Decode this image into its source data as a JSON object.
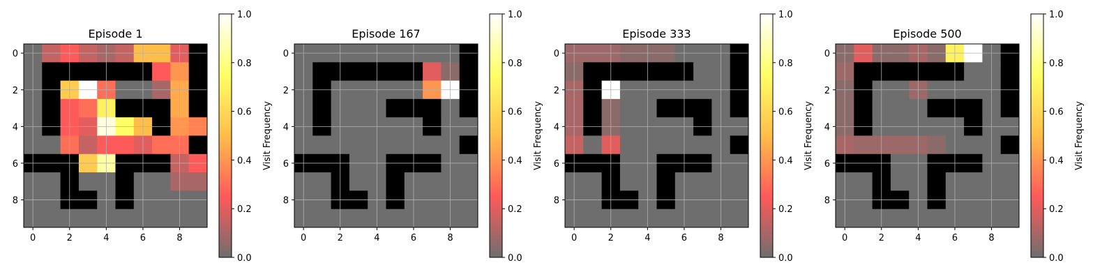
{
  "colors": {
    "wall": "#000000",
    "grid_line": "#b0b0b0",
    "cmap": [
      "#6e6e6e",
      "#ff5a5a",
      "#ffbe4a",
      "#ffff66",
      "#ffffff"
    ]
  },
  "chart_data": [
    {
      "type": "heatmap",
      "title": "Episode 1",
      "x_ticks": [
        "0",
        "2",
        "4",
        "6",
        "8"
      ],
      "y_ticks": [
        "0",
        "2",
        "4",
        "6",
        "8"
      ],
      "colorbar": {
        "label": "Visit Frequency",
        "range": [
          0,
          1
        ],
        "ticks": [
          "0.0",
          "0.2",
          "0.4",
          "0.6",
          "0.8",
          "1.0"
        ]
      },
      "grid": true,
      "walls": [
        [
          0,
          0,
          0,
          0,
          0,
          0,
          0,
          0,
          0,
          1
        ],
        [
          0,
          1,
          1,
          1,
          1,
          1,
          1,
          0,
          0,
          1
        ],
        [
          0,
          1,
          0,
          0,
          0,
          0,
          0,
          0,
          0,
          1
        ],
        [
          0,
          1,
          0,
          0,
          0,
          1,
          1,
          1,
          0,
          1
        ],
        [
          0,
          1,
          0,
          0,
          0,
          0,
          0,
          1,
          0,
          0
        ],
        [
          0,
          0,
          0,
          0,
          0,
          0,
          0,
          0,
          0,
          1
        ],
        [
          1,
          1,
          1,
          0,
          0,
          1,
          1,
          1,
          0,
          0
        ],
        [
          0,
          0,
          1,
          0,
          0,
          1,
          0,
          0,
          0,
          0
        ],
        [
          0,
          0,
          1,
          1,
          0,
          1,
          0,
          0,
          0,
          0
        ],
        [
          0,
          0,
          0,
          0,
          0,
          0,
          0,
          0,
          0,
          0
        ]
      ],
      "values": [
        [
          0.0,
          0.15,
          0.25,
          0.15,
          0.1,
          0.15,
          0.5,
          0.5,
          0.2,
          0.0
        ],
        [
          0.0,
          0.0,
          0.0,
          0.0,
          0.0,
          0.0,
          0.0,
          0.25,
          0.4,
          0.0
        ],
        [
          0.0,
          0.0,
          0.55,
          1.0,
          0.3,
          0.0,
          0.0,
          0.1,
          0.45,
          0.0
        ],
        [
          0.0,
          0.0,
          0.25,
          0.3,
          0.7,
          0.0,
          0.0,
          0.0,
          0.45,
          0.0
        ],
        [
          0.0,
          0.0,
          0.25,
          0.2,
          0.95,
          0.75,
          0.5,
          0.0,
          0.4,
          0.35
        ],
        [
          0.0,
          0.0,
          0.3,
          0.15,
          0.25,
          0.25,
          0.2,
          0.3,
          0.3,
          0.0
        ],
        [
          0.0,
          0.0,
          0.0,
          0.55,
          0.85,
          0.0,
          0.0,
          0.0,
          0.15,
          0.25
        ],
        [
          0.0,
          0.0,
          0.0,
          0.0,
          0.0,
          0.0,
          0.0,
          0.0,
          0.1,
          0.1
        ],
        [
          0.0,
          0.0,
          0.0,
          0.0,
          0.0,
          0.0,
          0.0,
          0.0,
          0.0,
          0.0
        ],
        [
          0.0,
          0.0,
          0.0,
          0.0,
          0.0,
          0.0,
          0.0,
          0.0,
          0.0,
          0.0
        ]
      ]
    },
    {
      "type": "heatmap",
      "title": "Episode 167",
      "x_ticks": [
        "0",
        "2",
        "4",
        "6",
        "8"
      ],
      "y_ticks": [
        "0",
        "2",
        "4",
        "6",
        "8"
      ],
      "colorbar": {
        "label": "Visit Frequency",
        "range": [
          0,
          1
        ],
        "ticks": [
          "0.0",
          "0.2",
          "0.4",
          "0.6",
          "0.8",
          "1.0"
        ]
      },
      "grid": true,
      "walls": [
        [
          0,
          0,
          0,
          0,
          0,
          0,
          0,
          0,
          0,
          1
        ],
        [
          0,
          1,
          1,
          1,
          1,
          1,
          1,
          0,
          0,
          1
        ],
        [
          0,
          1,
          0,
          0,
          0,
          0,
          0,
          0,
          0,
          1
        ],
        [
          0,
          1,
          0,
          0,
          0,
          1,
          1,
          1,
          0,
          1
        ],
        [
          0,
          1,
          0,
          0,
          0,
          0,
          0,
          1,
          0,
          0
        ],
        [
          0,
          0,
          0,
          0,
          0,
          0,
          0,
          0,
          0,
          1
        ],
        [
          1,
          1,
          1,
          0,
          0,
          1,
          1,
          1,
          0,
          0
        ],
        [
          0,
          0,
          1,
          0,
          0,
          1,
          0,
          0,
          0,
          0
        ],
        [
          0,
          0,
          1,
          1,
          0,
          1,
          0,
          0,
          0,
          0
        ],
        [
          0,
          0,
          0,
          0,
          0,
          0,
          0,
          0,
          0,
          0
        ]
      ],
      "values": [
        [
          0.0,
          0.0,
          0.0,
          0.0,
          0.0,
          0.0,
          0.0,
          0.0,
          0.0,
          0.0
        ],
        [
          0.0,
          0.0,
          0.0,
          0.0,
          0.0,
          0.0,
          0.0,
          0.2,
          0.05,
          0.0
        ],
        [
          0.0,
          0.0,
          0.0,
          0.0,
          0.0,
          0.0,
          0.0,
          0.4,
          1.0,
          0.0
        ],
        [
          0.0,
          0.0,
          0.0,
          0.0,
          0.0,
          0.0,
          0.0,
          0.0,
          0.0,
          0.0
        ],
        [
          0.0,
          0.0,
          0.0,
          0.0,
          0.0,
          0.0,
          0.0,
          0.0,
          0.0,
          0.0
        ],
        [
          0.0,
          0.0,
          0.0,
          0.0,
          0.0,
          0.0,
          0.0,
          0.0,
          0.0,
          0.0
        ],
        [
          0.0,
          0.0,
          0.0,
          0.0,
          0.0,
          0.0,
          0.0,
          0.0,
          0.0,
          0.0
        ],
        [
          0.0,
          0.0,
          0.0,
          0.0,
          0.0,
          0.0,
          0.0,
          0.0,
          0.0,
          0.0
        ],
        [
          0.0,
          0.0,
          0.0,
          0.0,
          0.0,
          0.0,
          0.0,
          0.0,
          0.0,
          0.0
        ],
        [
          0.0,
          0.0,
          0.0,
          0.0,
          0.0,
          0.0,
          0.0,
          0.0,
          0.0,
          0.0
        ]
      ]
    },
    {
      "type": "heatmap",
      "title": "Episode 333",
      "x_ticks": [
        "0",
        "2",
        "4",
        "6",
        "8"
      ],
      "y_ticks": [
        "0",
        "2",
        "4",
        "6",
        "8"
      ],
      "colorbar": {
        "label": "Visit Frequency",
        "range": [
          0,
          1
        ],
        "ticks": [
          "0.0",
          "0.2",
          "0.4",
          "0.6",
          "0.8",
          "1.0"
        ]
      },
      "grid": true,
      "walls": [
        [
          0,
          0,
          0,
          0,
          0,
          0,
          0,
          0,
          0,
          1
        ],
        [
          0,
          1,
          1,
          1,
          1,
          1,
          1,
          0,
          0,
          1
        ],
        [
          0,
          1,
          0,
          0,
          0,
          0,
          0,
          0,
          0,
          1
        ],
        [
          0,
          1,
          0,
          0,
          0,
          1,
          1,
          1,
          0,
          1
        ],
        [
          0,
          1,
          0,
          0,
          0,
          0,
          0,
          1,
          0,
          0
        ],
        [
          0,
          0,
          0,
          0,
          0,
          0,
          0,
          0,
          0,
          1
        ],
        [
          1,
          1,
          1,
          0,
          0,
          1,
          1,
          1,
          0,
          0
        ],
        [
          0,
          0,
          1,
          0,
          0,
          1,
          0,
          0,
          0,
          0
        ],
        [
          0,
          0,
          1,
          1,
          0,
          1,
          0,
          0,
          0,
          0
        ],
        [
          0,
          0,
          0,
          0,
          0,
          0,
          0,
          0,
          0,
          0
        ]
      ],
      "values": [
        [
          0.08,
          0.08,
          0.08,
          0.05,
          0.05,
          0.05,
          0.0,
          0.0,
          0.0,
          0.0
        ],
        [
          0.05,
          0.0,
          0.0,
          0.0,
          0.0,
          0.0,
          0.0,
          0.0,
          0.0,
          0.0
        ],
        [
          0.1,
          0.0,
          1.0,
          0.0,
          0.0,
          0.0,
          0.0,
          0.0,
          0.0,
          0.0
        ],
        [
          0.1,
          0.0,
          0.05,
          0.0,
          0.0,
          0.0,
          0.0,
          0.0,
          0.0,
          0.0
        ],
        [
          0.1,
          0.0,
          0.05,
          0.0,
          0.0,
          0.0,
          0.0,
          0.0,
          0.0,
          0.0
        ],
        [
          0.15,
          0.0,
          0.2,
          0.0,
          0.0,
          0.0,
          0.0,
          0.0,
          0.0,
          0.0
        ],
        [
          0.0,
          0.0,
          0.0,
          0.0,
          0.0,
          0.0,
          0.0,
          0.0,
          0.0,
          0.0
        ],
        [
          0.0,
          0.0,
          0.0,
          0.0,
          0.0,
          0.0,
          0.0,
          0.0,
          0.0,
          0.0
        ],
        [
          0.0,
          0.0,
          0.0,
          0.0,
          0.0,
          0.0,
          0.0,
          0.0,
          0.0,
          0.0
        ],
        [
          0.0,
          0.0,
          0.0,
          0.0,
          0.0,
          0.0,
          0.0,
          0.0,
          0.0,
          0.0
        ]
      ]
    },
    {
      "type": "heatmap",
      "title": "Episode 500",
      "x_ticks": [
        "0",
        "2",
        "4",
        "6",
        "8"
      ],
      "y_ticks": [
        "0",
        "2",
        "4",
        "6",
        "8"
      ],
      "colorbar": {
        "label": "Visit Frequency",
        "range": [
          0,
          1
        ],
        "ticks": [
          "0.0",
          "0.2",
          "0.4",
          "0.6",
          "0.8",
          "1.0"
        ]
      },
      "grid": true,
      "walls": [
        [
          0,
          0,
          0,
          0,
          0,
          0,
          0,
          0,
          0,
          1
        ],
        [
          0,
          1,
          1,
          1,
          1,
          1,
          1,
          0,
          0,
          1
        ],
        [
          0,
          1,
          0,
          0,
          0,
          0,
          0,
          0,
          0,
          1
        ],
        [
          0,
          1,
          0,
          0,
          0,
          1,
          1,
          1,
          0,
          1
        ],
        [
          0,
          1,
          0,
          0,
          0,
          0,
          0,
          1,
          0,
          0
        ],
        [
          0,
          0,
          0,
          0,
          0,
          0,
          0,
          0,
          0,
          1
        ],
        [
          1,
          1,
          1,
          0,
          0,
          1,
          1,
          1,
          0,
          0
        ],
        [
          0,
          0,
          1,
          0,
          0,
          1,
          0,
          0,
          0,
          0
        ],
        [
          0,
          0,
          1,
          1,
          0,
          1,
          0,
          0,
          0,
          0
        ],
        [
          0,
          0,
          0,
          0,
          0,
          0,
          0,
          0,
          0,
          0
        ]
      ],
      "values": [
        [
          0.05,
          0.2,
          0.05,
          0.05,
          0.1,
          0.05,
          0.7,
          1.0,
          0.0,
          0.0
        ],
        [
          0.08,
          0.0,
          0.0,
          0.0,
          0.0,
          0.0,
          0.0,
          0.0,
          0.0,
          0.0
        ],
        [
          0.05,
          0.0,
          0.0,
          0.0,
          0.08,
          0.0,
          0.0,
          0.0,
          0.0,
          0.0
        ],
        [
          0.05,
          0.0,
          0.0,
          0.0,
          0.0,
          0.0,
          0.0,
          0.0,
          0.0,
          0.0
        ],
        [
          0.05,
          0.0,
          0.0,
          0.0,
          0.0,
          0.0,
          0.0,
          0.0,
          0.0,
          0.0
        ],
        [
          0.1,
          0.08,
          0.08,
          0.08,
          0.08,
          0.05,
          0.0,
          0.0,
          0.0,
          0.0
        ],
        [
          0.0,
          0.0,
          0.0,
          0.0,
          0.0,
          0.0,
          0.0,
          0.0,
          0.0,
          0.0
        ],
        [
          0.0,
          0.0,
          0.0,
          0.0,
          0.0,
          0.0,
          0.0,
          0.0,
          0.0,
          0.0
        ],
        [
          0.0,
          0.0,
          0.0,
          0.0,
          0.0,
          0.0,
          0.0,
          0.0,
          0.0,
          0.0
        ],
        [
          0.0,
          0.0,
          0.0,
          0.0,
          0.0,
          0.0,
          0.0,
          0.0,
          0.0,
          0.0
        ]
      ]
    }
  ]
}
